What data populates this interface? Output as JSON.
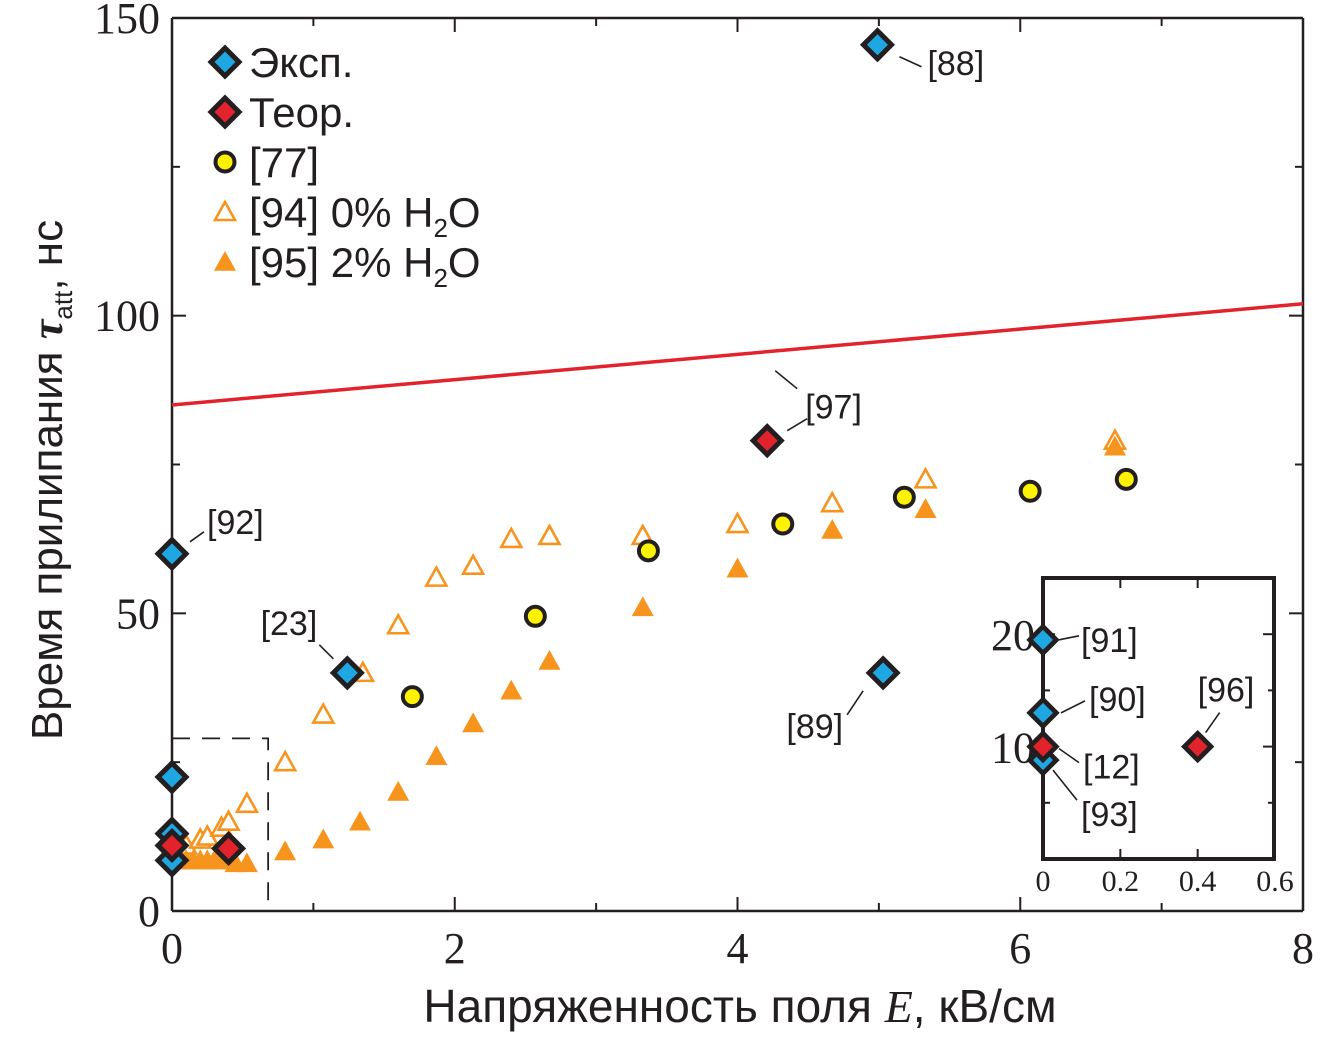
{
  "chart_data": [
    {
      "type": "scatter",
      "title": "",
      "xlabel": "Напряженность поля E, кВ/см",
      "ylabel": "Время прилипания τatt, нс",
      "xlim": [
        0,
        8
      ],
      "ylim": [
        0,
        150
      ],
      "xticks": [
        "0",
        "2",
        "4",
        "6",
        "8"
      ],
      "yticks": [
        "0",
        "50",
        "100",
        "150"
      ],
      "legend_position": "top-left",
      "series": [
        {
          "name": "Эксп.",
          "marker": "diamond",
          "color": "#1ea7e1",
          "points": [
            {
              "x": 4.99,
              "y": 145.5,
              "label": "[88]"
            },
            {
              "x": 5.03,
              "y": 40,
              "label": "[89]"
            },
            {
              "x": 0.0,
              "y": 60,
              "label": "[92]"
            },
            {
              "x": 1.24,
              "y": 40,
              "label": "[23]"
            },
            {
              "x": 0.0,
              "y": 22.5
            },
            {
              "x": 0.0,
              "y": 13
            },
            {
              "x": 0.0,
              "y": 8.5
            }
          ]
        },
        {
          "name": "Теор.",
          "marker": "diamond",
          "color": "#e3232c",
          "points": [
            {
              "x": 4.21,
              "y": 79,
              "label": "[97]"
            },
            {
              "x": 0.4,
              "y": 10.5
            },
            {
              "x": 0.0,
              "y": 11
            }
          ]
        },
        {
          "name": "[77]",
          "marker": "circle",
          "color": "#fff200",
          "points": [
            {
              "x": 1.7,
              "y": 36
            },
            {
              "x": 2.57,
              "y": 49.5
            },
            {
              "x": 3.37,
              "y": 60.5
            },
            {
              "x": 4.32,
              "y": 65
            },
            {
              "x": 5.18,
              "y": 69.5
            },
            {
              "x": 6.07,
              "y": 70.5
            },
            {
              "x": 6.75,
              "y": 72.5
            }
          ]
        },
        {
          "name": "[94] 0% H2O",
          "marker": "triangle-open",
          "color": "#f7941d",
          "points": [
            {
              "x": 0.1,
              "y": 11
            },
            {
              "x": 0.2,
              "y": 12
            },
            {
              "x": 0.25,
              "y": 12.5
            },
            {
              "x": 0.35,
              "y": 14
            },
            {
              "x": 0.4,
              "y": 15
            },
            {
              "x": 0.53,
              "y": 18
            },
            {
              "x": 0.8,
              "y": 25
            },
            {
              "x": 1.07,
              "y": 33
            },
            {
              "x": 1.35,
              "y": 40
            },
            {
              "x": 1.6,
              "y": 48
            },
            {
              "x": 1.87,
              "y": 56
            },
            {
              "x": 2.13,
              "y": 58
            },
            {
              "x": 2.4,
              "y": 62.5
            },
            {
              "x": 2.67,
              "y": 63
            },
            {
              "x": 3.33,
              "y": 63
            },
            {
              "x": 4.0,
              "y": 65
            },
            {
              "x": 4.67,
              "y": 68.5
            },
            {
              "x": 5.33,
              "y": 72.5
            },
            {
              "x": 6.67,
              "y": 79
            }
          ]
        },
        {
          "name": "[95] 2% H2O",
          "marker": "triangle-filled",
          "color": "#f7941d",
          "points": [
            {
              "x": 0.05,
              "y": 8.5
            },
            {
              "x": 0.1,
              "y": 8.5
            },
            {
              "x": 0.15,
              "y": 8.5
            },
            {
              "x": 0.2,
              "y": 8.5
            },
            {
              "x": 0.25,
              "y": 8.5
            },
            {
              "x": 0.3,
              "y": 8.5
            },
            {
              "x": 0.35,
              "y": 8.5
            },
            {
              "x": 0.45,
              "y": 8
            },
            {
              "x": 0.53,
              "y": 8
            },
            {
              "x": 0.8,
              "y": 10
            },
            {
              "x": 1.07,
              "y": 12
            },
            {
              "x": 1.33,
              "y": 15
            },
            {
              "x": 1.6,
              "y": 20
            },
            {
              "x": 1.87,
              "y": 26
            },
            {
              "x": 2.13,
              "y": 31.5
            },
            {
              "x": 2.4,
              "y": 37
            },
            {
              "x": 2.67,
              "y": 42
            },
            {
              "x": 3.33,
              "y": 51
            },
            {
              "x": 4.0,
              "y": 57.5
            },
            {
              "x": 4.67,
              "y": 64
            },
            {
              "x": 5.33,
              "y": 67.5
            },
            {
              "x": 6.67,
              "y": 78
            }
          ]
        },
        {
          "name": "theory curve",
          "type": "line",
          "color": "#e3232c",
          "x": [
            0,
            8
          ],
          "y": [
            85,
            102
          ]
        }
      ]
    },
    {
      "type": "scatter",
      "title": "",
      "inset": true,
      "xlim": [
        0,
        0.6
      ],
      "ylim": [
        0,
        25
      ],
      "xticks": [
        "0",
        "0.2",
        "0.4",
        "0.6"
      ],
      "yticks": [
        "10",
        "20"
      ],
      "series": [
        {
          "name": "Эксп.",
          "marker": "diamond",
          "color": "#1ea7e1",
          "points": [
            {
              "x": 0.0,
              "y": 19.5,
              "label": "[91]"
            },
            {
              "x": 0.0,
              "y": 13,
              "label": "[90]"
            },
            {
              "x": 0.0,
              "y": 8.8,
              "label": "[93]"
            }
          ]
        },
        {
          "name": "Теор.",
          "marker": "diamond",
          "color": "#e3232c",
          "points": [
            {
              "x": 0.0,
              "y": 10,
              "label": "[12]"
            },
            {
              "x": 0.4,
              "y": 10,
              "label": "[96]"
            }
          ]
        }
      ]
    }
  ],
  "legend": [
    {
      "label": "Эксп.",
      "marker": "diamond",
      "color": "#1ea7e1"
    },
    {
      "label": "Теор.",
      "marker": "diamond",
      "color": "#e3232c"
    },
    {
      "label": "[77]",
      "marker": "circle",
      "color": "#fff200"
    },
    {
      "label": "[94] 0% H",
      "sub": "2",
      "tail": "O",
      "marker": "triangle-open",
      "color": "#f7941d"
    },
    {
      "label": "[95] 2% H",
      "sub": "2",
      "tail": "O",
      "marker": "triangle-filled",
      "color": "#f7941d"
    }
  ],
  "axis_labels": {
    "y_prefix": "Время прилипания ",
    "y_symbol": "τ",
    "y_sub": "att",
    "y_unit": ", нс",
    "x_prefix": "Напряженность поля ",
    "x_symbol": "E",
    "x_unit": ", кВ/см"
  }
}
